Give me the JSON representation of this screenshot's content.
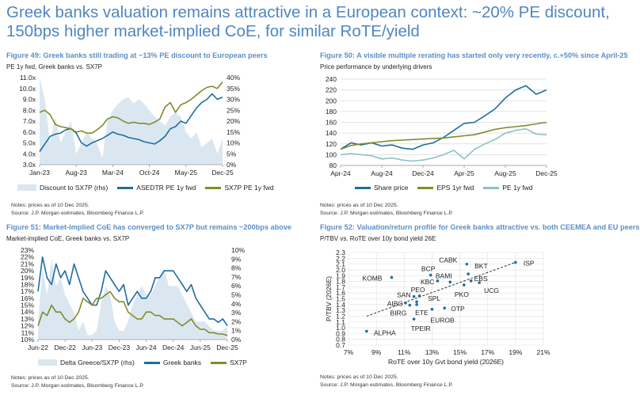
{
  "page_title": "Greek banks valuation remains attractive in a European context: ~20% PE discount, 150bps higher market-implied CoE, for similar RoTE/yield",
  "colors": {
    "title": "#4f86c0",
    "greek": "#1f6da0",
    "sx7p": "#7f8c2c",
    "pe": "#8fc0c4",
    "area": "#dbe7f0",
    "red": "#c0393b"
  },
  "chart_data": [
    {
      "type": "line",
      "title": "Figure 49: Greek banks still trading at ~13% PE discount to European peers",
      "subtitle": "PE 1y fwd, Greek banks vs. SX7P",
      "x_ticks": [
        "Jan-23",
        "Aug-23",
        "Mar-24",
        "Oct-24",
        "May-25",
        "Dec-25"
      ],
      "x_tick_index": [
        0,
        7,
        14,
        21,
        28,
        35
      ],
      "ylim": [
        3,
        11
      ],
      "y_ticks": [
        "3.0x",
        "4.0x",
        "5.0x",
        "6.0x",
        "7.0x",
        "8.0x",
        "9.0x",
        "10.0x",
        "11.0x"
      ],
      "ylim_rhs": [
        0,
        40
      ],
      "y_ticks_rhs": [
        "0%",
        "5%",
        "10%",
        "15%",
        "20%",
        "25%",
        "30%",
        "35%",
        "40%"
      ],
      "series": [
        {
          "name": "Discount to SX7P (rhs)",
          "kind": "area",
          "axis": "rhs",
          "values": [
            40,
            30,
            10,
            22,
            10,
            15,
            20,
            5,
            10,
            15,
            12,
            10,
            3,
            20,
            25,
            28,
            30,
            31,
            28,
            30,
            28,
            25,
            22,
            20,
            18,
            22,
            24,
            22,
            15,
            12,
            15,
            8,
            10,
            12,
            5,
            12
          ]
        },
        {
          "name": "ASEDTR PE 1y fwd",
          "kind": "line",
          "axis": "lhs",
          "values": [
            4.2,
            4.9,
            5.6,
            5.8,
            5.9,
            6.2,
            6.3,
            5.9,
            5.0,
            4.7,
            5.0,
            5.2,
            5.4,
            5.7,
            6.0,
            5.8,
            5.7,
            5.5,
            5.4,
            5.3,
            5.1,
            5.0,
            4.9,
            5.2,
            5.6,
            6.3,
            6.5,
            7.0,
            6.8,
            7.5,
            8.2,
            8.7,
            9.0,
            9.5,
            9.0,
            9.2
          ]
        },
        {
          "name": "SX7P PE 1y fwd",
          "kind": "line",
          "axis": "lhs",
          "values": [
            7.8,
            8.0,
            7.6,
            6.7,
            6.5,
            6.4,
            6.3,
            6.0,
            6.1,
            5.9,
            5.9,
            6.2,
            6.6,
            7.2,
            7.4,
            7.3,
            7.0,
            6.8,
            6.9,
            6.8,
            6.8,
            6.7,
            6.9,
            7.2,
            8.3,
            8.7,
            7.8,
            8.5,
            8.7,
            9.0,
            9.4,
            9.8,
            10.1,
            10.2,
            10.0,
            10.6
          ]
        }
      ],
      "notes": "Notes: prices as of 10 Dec 2025.",
      "source": "Source: J.P. Morgan estimates, Bloomberg Finance L.P."
    },
    {
      "type": "line",
      "title": "Figure 50: A visible multiple rerating has started only very recently, c.+50% since April-25",
      "subtitle": "Price performance by underlying drivers",
      "x_ticks": [
        "Apr-24",
        "Aug-24",
        "Dec-24",
        "Apr-25",
        "Aug-25",
        "Dec-25"
      ],
      "x_tick_index": [
        0,
        4,
        8,
        12,
        16,
        20
      ],
      "ylim": [
        80,
        240
      ],
      "y_ticks": [
        "80",
        "100",
        "120",
        "140",
        "160",
        "180",
        "200",
        "220",
        "240"
      ],
      "grid": true,
      "series": [
        {
          "name": "Share price",
          "kind": "line",
          "values": [
            110,
            122,
            118,
            122,
            116,
            118,
            112,
            110,
            118,
            122,
            132,
            145,
            158,
            160,
            172,
            185,
            205,
            220,
            228,
            212,
            220
          ]
        },
        {
          "name": "EPS 1yr fwd",
          "kind": "line",
          "values": [
            110,
            117,
            120,
            122,
            124,
            126,
            127,
            128,
            129,
            130,
            131,
            133,
            135,
            137,
            142,
            147,
            150,
            152,
            154,
            157,
            160
          ]
        },
        {
          "name": "PE 1y fwd",
          "kind": "line",
          "values": [
            100,
            102,
            100,
            98,
            92,
            94,
            90,
            88,
            90,
            94,
            100,
            108,
            92,
            110,
            120,
            128,
            140,
            145,
            148,
            138,
            137
          ]
        }
      ],
      "notes": "Notes: prices as of 10 Dec 2025.",
      "source": "Source: J.P. Morgan estimates, Bloomberg Finance L.P."
    },
    {
      "type": "line",
      "title": "Figure 51: Market-implied CoE has converged to SX7P but remains ~200bps above",
      "subtitle": "Market-implied CoE, Greek banks vs. SX7P",
      "x_ticks": [
        "Jun-22",
        "Dec-22",
        "Jun-23",
        "Dec-23",
        "Jun-24",
        "Dec-24",
        "Jun-25",
        "Dec-25"
      ],
      "x_tick_index": [
        0,
        6,
        12,
        18,
        24,
        30,
        36,
        42
      ],
      "ylim": [
        10,
        23
      ],
      "y_ticks": [
        "10%",
        "11%",
        "12%",
        "13%",
        "14%",
        "15%",
        "16%",
        "17%",
        "18%",
        "19%",
        "20%",
        "21%",
        "22%",
        "23%"
      ],
      "ylim_rhs": [
        0,
        10
      ],
      "y_ticks_rhs": [
        "0%",
        "1%",
        "2%",
        "3%",
        "4%",
        "5%",
        "6%",
        "7%",
        "8%",
        "9%",
        "10%"
      ],
      "series": [
        {
          "name": "Delta Greece/SX7P (rhs)",
          "kind": "area",
          "axis": "rhs",
          "values": [
            2,
            8,
            5,
            9,
            6,
            7,
            5,
            4,
            3,
            1,
            2,
            0.5,
            0.5,
            1,
            4,
            6,
            5,
            2,
            1,
            1,
            2,
            4,
            5,
            6,
            5,
            5,
            6,
            7,
            8,
            6,
            6,
            6,
            5,
            4,
            3,
            2,
            2,
            2,
            1.5,
            1,
            1,
            1,
            1.5
          ]
        },
        {
          "name": "Greek banks",
          "kind": "line",
          "axis": "lhs",
          "values": [
            17,
            22,
            19,
            18,
            21,
            19,
            20,
            18,
            21,
            19,
            17,
            16,
            15,
            15,
            17,
            20,
            19,
            18,
            17,
            18,
            15,
            16,
            17,
            16,
            16,
            17,
            19,
            19,
            20,
            20,
            20,
            19,
            18,
            17,
            18,
            16,
            15,
            14,
            13,
            13,
            12.5,
            13,
            12
          ]
        },
        {
          "name": "SX7P",
          "kind": "line",
          "axis": "lhs",
          "values": [
            12,
            14,
            13.5,
            15,
            14,
            14,
            13,
            12.5,
            13,
            14,
            16,
            15.5,
            15,
            16,
            16,
            16.5,
            17,
            16,
            15.5,
            15.5,
            14,
            13.5,
            13,
            13,
            14,
            14,
            13.5,
            13.5,
            13,
            13,
            13,
            12.5,
            12,
            12.5,
            13,
            12,
            11.5,
            11.5,
            11,
            11,
            10.8,
            10.8,
            10.6
          ]
        }
      ],
      "notes": "Notes: prices as of 10 Dec 2025.",
      "source": "Source: J.P. Morgan estimates, Bloomberg Finance L.P."
    },
    {
      "type": "scatter",
      "title": "Figure 52: Valuation/return profile for Greek banks attractive vs. both CEEMEA and EU peers",
      "subtitle": "P/TBV vs. RoTE over 10y bond yield 26E",
      "xlabel": "RoTE over 10y Gvt bond yield (2026E)",
      "ylabel": "P/TBV (2026E)",
      "xlim": [
        7,
        21
      ],
      "x_ticks": [
        "7%",
        "9%",
        "11%",
        "13%",
        "15%",
        "17%",
        "19%",
        "21%"
      ],
      "ylim": [
        0.7,
        2.3
      ],
      "y_ticks": [
        "0.7",
        "0.8",
        "0.9",
        "1.0",
        "1.1",
        "1.2",
        "1.3",
        "1.4",
        "1.5",
        "1.6",
        "1.7",
        "1.8",
        "1.9",
        "2.0",
        "2.1",
        "2.2",
        "2.3"
      ],
      "grid": true,
      "trendline": [
        [
          8.3,
          1.2
        ],
        [
          19,
          2.13
        ]
      ],
      "points": [
        {
          "label": "ISP",
          "x": 19.0,
          "y": 2.13,
          "greek": false
        },
        {
          "label": "CABK",
          "x": 15.5,
          "y": 2.1,
          "greek": false
        },
        {
          "label": "BKT",
          "x": 15.6,
          "y": 1.93,
          "greek": false
        },
        {
          "label": "EBS",
          "x": 15.8,
          "y": 1.81,
          "greek": false
        },
        {
          "label": "UCG",
          "x": 16.4,
          "y": 1.78,
          "greek": false
        },
        {
          "label": "PKO",
          "x": 15.3,
          "y": 1.74,
          "greek": false
        },
        {
          "label": "BAMI",
          "x": 14.3,
          "y": 1.79,
          "greek": false
        },
        {
          "label": "KBC",
          "x": 13.4,
          "y": 1.81,
          "greek": false
        },
        {
          "label": "BCP",
          "x": 12.9,
          "y": 1.91,
          "greek": false
        },
        {
          "label": "KOMB",
          "x": 10.1,
          "y": 1.87,
          "greek": false
        },
        {
          "label": "PEO",
          "x": 12.1,
          "y": 1.55,
          "greek": false
        },
        {
          "label": "SAN",
          "x": 11.7,
          "y": 1.54,
          "greek": false
        },
        {
          "label": "SPL",
          "x": 11.9,
          "y": 1.45,
          "greek": false
        },
        {
          "label": "AIBG",
          "x": 11.1,
          "y": 1.43,
          "greek": false
        },
        {
          "label": "BIRG",
          "x": 11.4,
          "y": 1.39,
          "greek": false
        },
        {
          "label": "ETE",
          "x": 11.9,
          "y": 1.4,
          "greek": true
        },
        {
          "label": "EUROB",
          "x": 13.0,
          "y": 1.32,
          "greek": true
        },
        {
          "label": "OTP",
          "x": 13.9,
          "y": 1.34,
          "greek": false
        },
        {
          "label": "TPEIR",
          "x": 11.7,
          "y": 1.15,
          "greek": true
        },
        {
          "label": "ALPHA",
          "x": 8.3,
          "y": 0.94,
          "greek": true
        }
      ],
      "notes": "Notes: prices as of 10 Dec 2025.",
      "source": "Source: J.P. Morgan estimates, Bloomberg Finance L.P."
    }
  ]
}
